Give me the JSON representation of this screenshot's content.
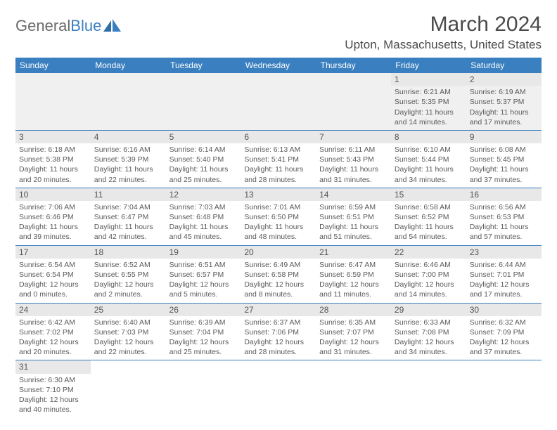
{
  "brand": {
    "part1": "General",
    "part2": "Blue",
    "logo_color": "#3a7fbf"
  },
  "title": "March 2024",
  "location": "Upton, Massachusetts, United States",
  "colors": {
    "header_bg": "#3a7fbf",
    "header_text": "#ffffff",
    "daynum_bg": "#e8e8e8",
    "body_text": "#5a5a5a",
    "border": "#3a7fbf",
    "empty_bg": "#f0f0f0"
  },
  "weekdays": [
    "Sunday",
    "Monday",
    "Tuesday",
    "Wednesday",
    "Thursday",
    "Friday",
    "Saturday"
  ],
  "weeks": [
    [
      null,
      null,
      null,
      null,
      null,
      {
        "d": "1",
        "sr": "6:21 AM",
        "ss": "5:35 PM",
        "dl": "11 hours and 14 minutes."
      },
      {
        "d": "2",
        "sr": "6:19 AM",
        "ss": "5:37 PM",
        "dl": "11 hours and 17 minutes."
      }
    ],
    [
      {
        "d": "3",
        "sr": "6:18 AM",
        "ss": "5:38 PM",
        "dl": "11 hours and 20 minutes."
      },
      {
        "d": "4",
        "sr": "6:16 AM",
        "ss": "5:39 PM",
        "dl": "11 hours and 22 minutes."
      },
      {
        "d": "5",
        "sr": "6:14 AM",
        "ss": "5:40 PM",
        "dl": "11 hours and 25 minutes."
      },
      {
        "d": "6",
        "sr": "6:13 AM",
        "ss": "5:41 PM",
        "dl": "11 hours and 28 minutes."
      },
      {
        "d": "7",
        "sr": "6:11 AM",
        "ss": "5:43 PM",
        "dl": "11 hours and 31 minutes."
      },
      {
        "d": "8",
        "sr": "6:10 AM",
        "ss": "5:44 PM",
        "dl": "11 hours and 34 minutes."
      },
      {
        "d": "9",
        "sr": "6:08 AM",
        "ss": "5:45 PM",
        "dl": "11 hours and 37 minutes."
      }
    ],
    [
      {
        "d": "10",
        "sr": "7:06 AM",
        "ss": "6:46 PM",
        "dl": "11 hours and 39 minutes."
      },
      {
        "d": "11",
        "sr": "7:04 AM",
        "ss": "6:47 PM",
        "dl": "11 hours and 42 minutes."
      },
      {
        "d": "12",
        "sr": "7:03 AM",
        "ss": "6:48 PM",
        "dl": "11 hours and 45 minutes."
      },
      {
        "d": "13",
        "sr": "7:01 AM",
        "ss": "6:50 PM",
        "dl": "11 hours and 48 minutes."
      },
      {
        "d": "14",
        "sr": "6:59 AM",
        "ss": "6:51 PM",
        "dl": "11 hours and 51 minutes."
      },
      {
        "d": "15",
        "sr": "6:58 AM",
        "ss": "6:52 PM",
        "dl": "11 hours and 54 minutes."
      },
      {
        "d": "16",
        "sr": "6:56 AM",
        "ss": "6:53 PM",
        "dl": "11 hours and 57 minutes."
      }
    ],
    [
      {
        "d": "17",
        "sr": "6:54 AM",
        "ss": "6:54 PM",
        "dl": "12 hours and 0 minutes."
      },
      {
        "d": "18",
        "sr": "6:52 AM",
        "ss": "6:55 PM",
        "dl": "12 hours and 2 minutes."
      },
      {
        "d": "19",
        "sr": "6:51 AM",
        "ss": "6:57 PM",
        "dl": "12 hours and 5 minutes."
      },
      {
        "d": "20",
        "sr": "6:49 AM",
        "ss": "6:58 PM",
        "dl": "12 hours and 8 minutes."
      },
      {
        "d": "21",
        "sr": "6:47 AM",
        "ss": "6:59 PM",
        "dl": "12 hours and 11 minutes."
      },
      {
        "d": "22",
        "sr": "6:46 AM",
        "ss": "7:00 PM",
        "dl": "12 hours and 14 minutes."
      },
      {
        "d": "23",
        "sr": "6:44 AM",
        "ss": "7:01 PM",
        "dl": "12 hours and 17 minutes."
      }
    ],
    [
      {
        "d": "24",
        "sr": "6:42 AM",
        "ss": "7:02 PM",
        "dl": "12 hours and 20 minutes."
      },
      {
        "d": "25",
        "sr": "6:40 AM",
        "ss": "7:03 PM",
        "dl": "12 hours and 22 minutes."
      },
      {
        "d": "26",
        "sr": "6:39 AM",
        "ss": "7:04 PM",
        "dl": "12 hours and 25 minutes."
      },
      {
        "d": "27",
        "sr": "6:37 AM",
        "ss": "7:06 PM",
        "dl": "12 hours and 28 minutes."
      },
      {
        "d": "28",
        "sr": "6:35 AM",
        "ss": "7:07 PM",
        "dl": "12 hours and 31 minutes."
      },
      {
        "d": "29",
        "sr": "6:33 AM",
        "ss": "7:08 PM",
        "dl": "12 hours and 34 minutes."
      },
      {
        "d": "30",
        "sr": "6:32 AM",
        "ss": "7:09 PM",
        "dl": "12 hours and 37 minutes."
      }
    ],
    [
      {
        "d": "31",
        "sr": "6:30 AM",
        "ss": "7:10 PM",
        "dl": "12 hours and 40 minutes."
      },
      null,
      null,
      null,
      null,
      null,
      null
    ]
  ],
  "labels": {
    "sunrise": "Sunrise:",
    "sunset": "Sunset:",
    "daylight": "Daylight:"
  }
}
